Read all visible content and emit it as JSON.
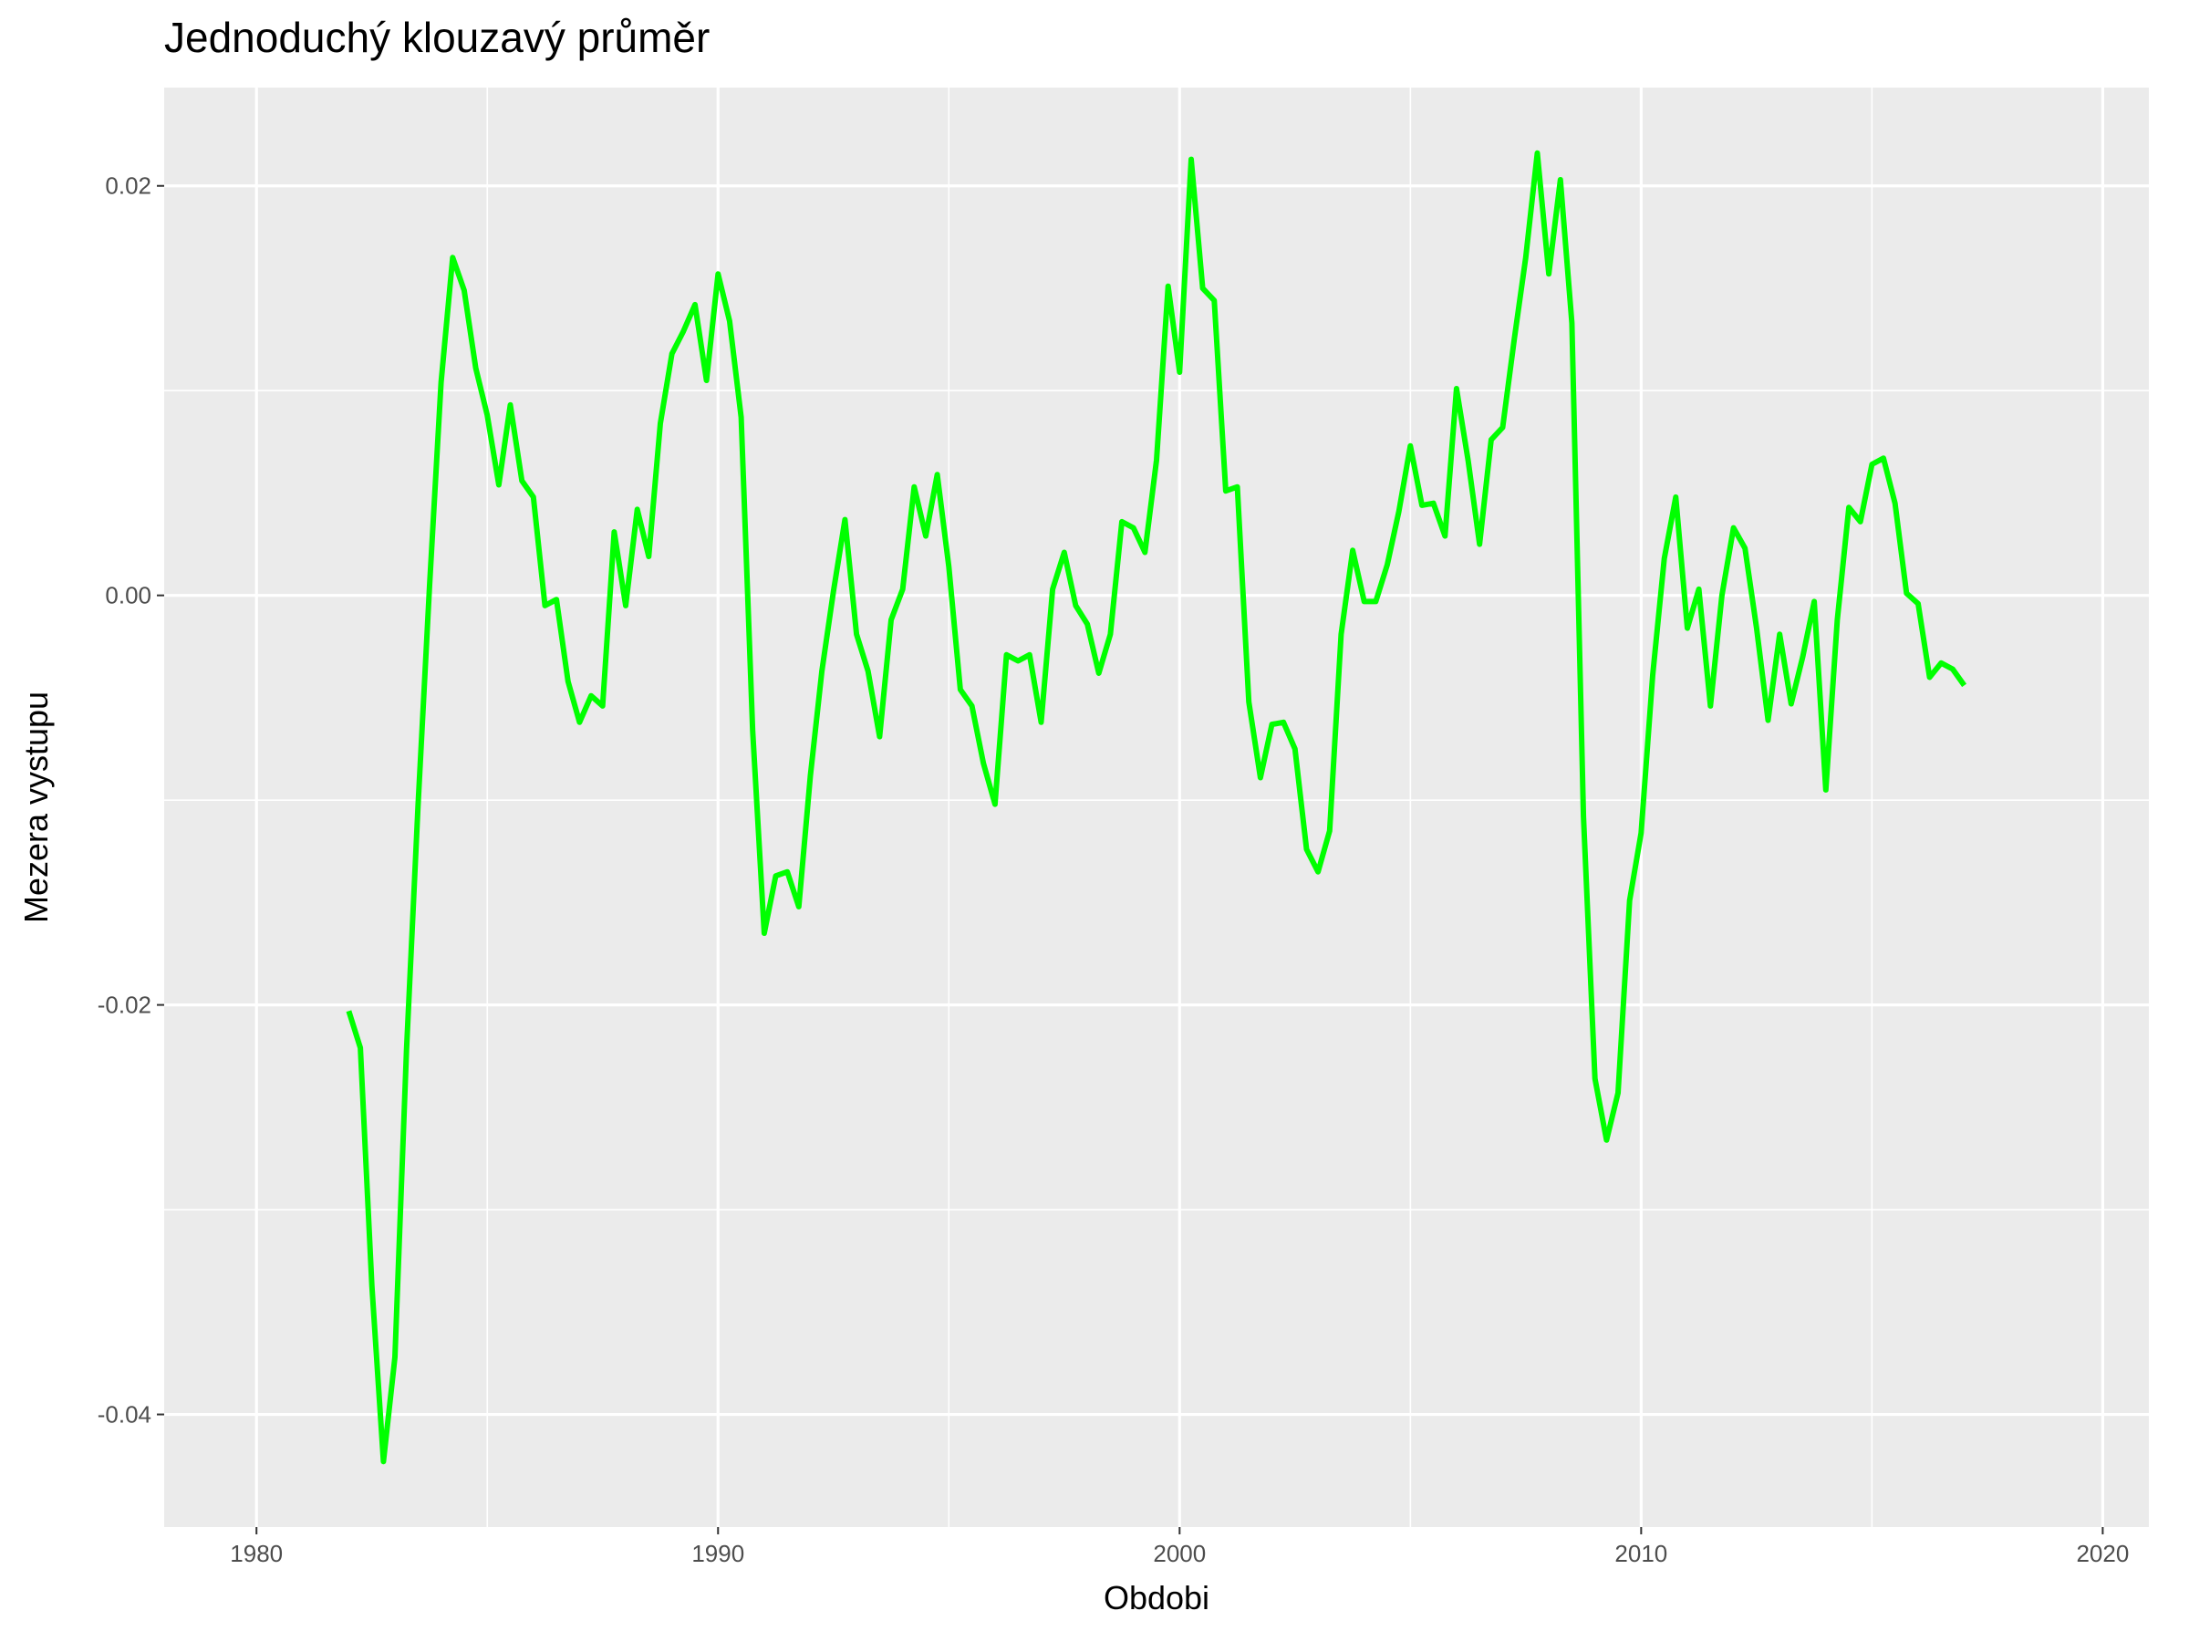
{
  "chart_data": {
    "type": "line",
    "title": "Jednoduchý klouzavý průměr",
    "xlabel": "Obdobi",
    "ylabel": "Mezera vystupu",
    "xlim": [
      1978,
      2021
    ],
    "ylim": [
      -0.0455,
      0.0248
    ],
    "x_ticks": [
      1980,
      1990,
      2000,
      2010,
      2020
    ],
    "x_tick_labels": [
      "1980",
      "1990",
      "2000",
      "2010",
      "2020"
    ],
    "y_ticks": [
      -0.04,
      -0.02,
      0.0,
      0.02
    ],
    "y_tick_labels": [
      "-0.04",
      "-0.02",
      "0.00",
      "0.02"
    ],
    "grid": true,
    "legend": "none",
    "line_color": "#00ff00",
    "panel_color": "#ebebeb",
    "grid_color": "#ffffff",
    "series": [
      {
        "x": [
          1982.0,
          1982.25,
          1982.5,
          1982.75,
          1983.0,
          1983.25,
          1983.5,
          1983.75,
          1984.0,
          1984.25,
          1984.5,
          1984.75,
          1985.0,
          1985.25,
          1985.5,
          1985.75,
          1986.0,
          1986.25,
          1986.5,
          1986.75,
          1987.0,
          1987.25,
          1987.5,
          1987.75,
          1988.0,
          1988.25,
          1988.5,
          1988.75,
          1989.0,
          1989.25,
          1989.5,
          1989.75,
          1990.0,
          1990.25,
          1990.5,
          1990.75,
          1991.0,
          1991.25,
          1991.5,
          1991.75,
          1992.0,
          1992.25,
          1992.5,
          1992.75,
          1993.0,
          1993.25,
          1993.5,
          1993.75,
          1994.0,
          1994.25,
          1994.5,
          1994.75,
          1995.0,
          1995.25,
          1995.5,
          1995.75,
          1996.0,
          1996.25,
          1996.5,
          1996.75,
          1997.0,
          1997.25,
          1997.5,
          1997.75,
          1998.0,
          1998.25,
          1998.5,
          1998.75,
          1999.0,
          1999.25,
          1999.5,
          1999.75,
          2000.0,
          2000.25,
          2000.5,
          2000.75,
          2001.0,
          2001.25,
          2001.5,
          2001.75,
          2002.0,
          2002.25,
          2002.5,
          2002.75,
          2003.0,
          2003.25,
          2003.5,
          2003.75,
          2004.0,
          2004.25,
          2004.5,
          2004.75,
          2005.0,
          2005.25,
          2005.5,
          2005.75,
          2006.0,
          2006.25,
          2006.5,
          2006.75,
          2007.0,
          2007.25,
          2007.5,
          2007.75,
          2008.0,
          2008.25,
          2008.5,
          2008.75,
          2009.0,
          2009.25,
          2009.5,
          2009.75,
          2010.0,
          2010.25,
          2010.5,
          2010.75,
          2011.0,
          2011.25,
          2011.5,
          2011.75,
          2012.0,
          2012.25,
          2012.5,
          2012.75,
          2013.0,
          2013.25,
          2013.5,
          2013.75,
          2014.0,
          2014.25,
          2014.5,
          2014.75,
          2015.0,
          2015.25,
          2015.5,
          2015.75,
          2016.0,
          2016.25,
          2016.5,
          2016.75,
          2017.0
        ],
        "y": [
          -0.0203,
          -0.0221,
          -0.0337,
          -0.0423,
          -0.0372,
          -0.0222,
          -0.0103,
          0.0005,
          0.0104,
          0.0165,
          0.0149,
          0.0111,
          0.0088,
          0.0054,
          0.0093,
          0.0056,
          0.0048,
          -0.0005,
          -0.0002,
          -0.0042,
          -0.0062,
          -0.0049,
          -0.0054,
          0.0031,
          -0.0005,
          0.0042,
          0.0019,
          0.0084,
          0.0118,
          0.0129,
          0.0142,
          0.0105,
          0.0157,
          0.0134,
          0.0087,
          -0.0066,
          -0.0165,
          -0.0137,
          -0.0135,
          -0.0152,
          -0.0088,
          -0.0037,
          0.0002,
          0.0037,
          -0.0019,
          -0.0037,
          -0.0069,
          -0.0012,
          0.0003,
          0.0053,
          0.0029,
          0.0059,
          0.0014,
          -0.0046,
          -0.0054,
          -0.0082,
          -0.0102,
          -0.0029,
          -0.0032,
          -0.0029,
          -0.0062,
          0.0003,
          0.0021,
          -0.0005,
          -0.0014,
          -0.0038,
          -0.0019,
          0.0036,
          0.0033,
          0.0021,
          0.0066,
          0.0151,
          0.0109,
          0.0213,
          0.015,
          0.0144,
          0.0051,
          0.0053,
          -0.0052,
          -0.0089,
          -0.0063,
          -0.0062,
          -0.0075,
          -0.0124,
          -0.0135,
          -0.0115,
          -0.0019,
          0.0022,
          -0.0003,
          -0.0003,
          0.0015,
          0.0041,
          0.0073,
          0.0044,
          0.0045,
          0.0029,
          0.0101,
          0.0066,
          0.0025,
          0.0076,
          0.0082,
          0.0125,
          0.0165,
          0.0216,
          0.0157,
          0.0203,
          0.0133,
          -0.0108,
          -0.0236,
          -0.0266,
          -0.0243,
          -0.0149,
          -0.0116,
          -0.0039,
          0.0018,
          0.0048,
          -0.0016,
          0.0003,
          -0.0054,
          0.0,
          0.0033,
          0.0023,
          -0.0016,
          -0.0061,
          -0.0019,
          -0.0053,
          -0.003,
          -0.0003,
          -0.0095,
          -0.0012,
          0.0043,
          0.0036,
          0.0064,
          0.0067,
          0.0045,
          0.0001,
          -0.0004,
          -0.004,
          -0.0033,
          -0.0036,
          -0.0044
        ]
      }
    ]
  }
}
